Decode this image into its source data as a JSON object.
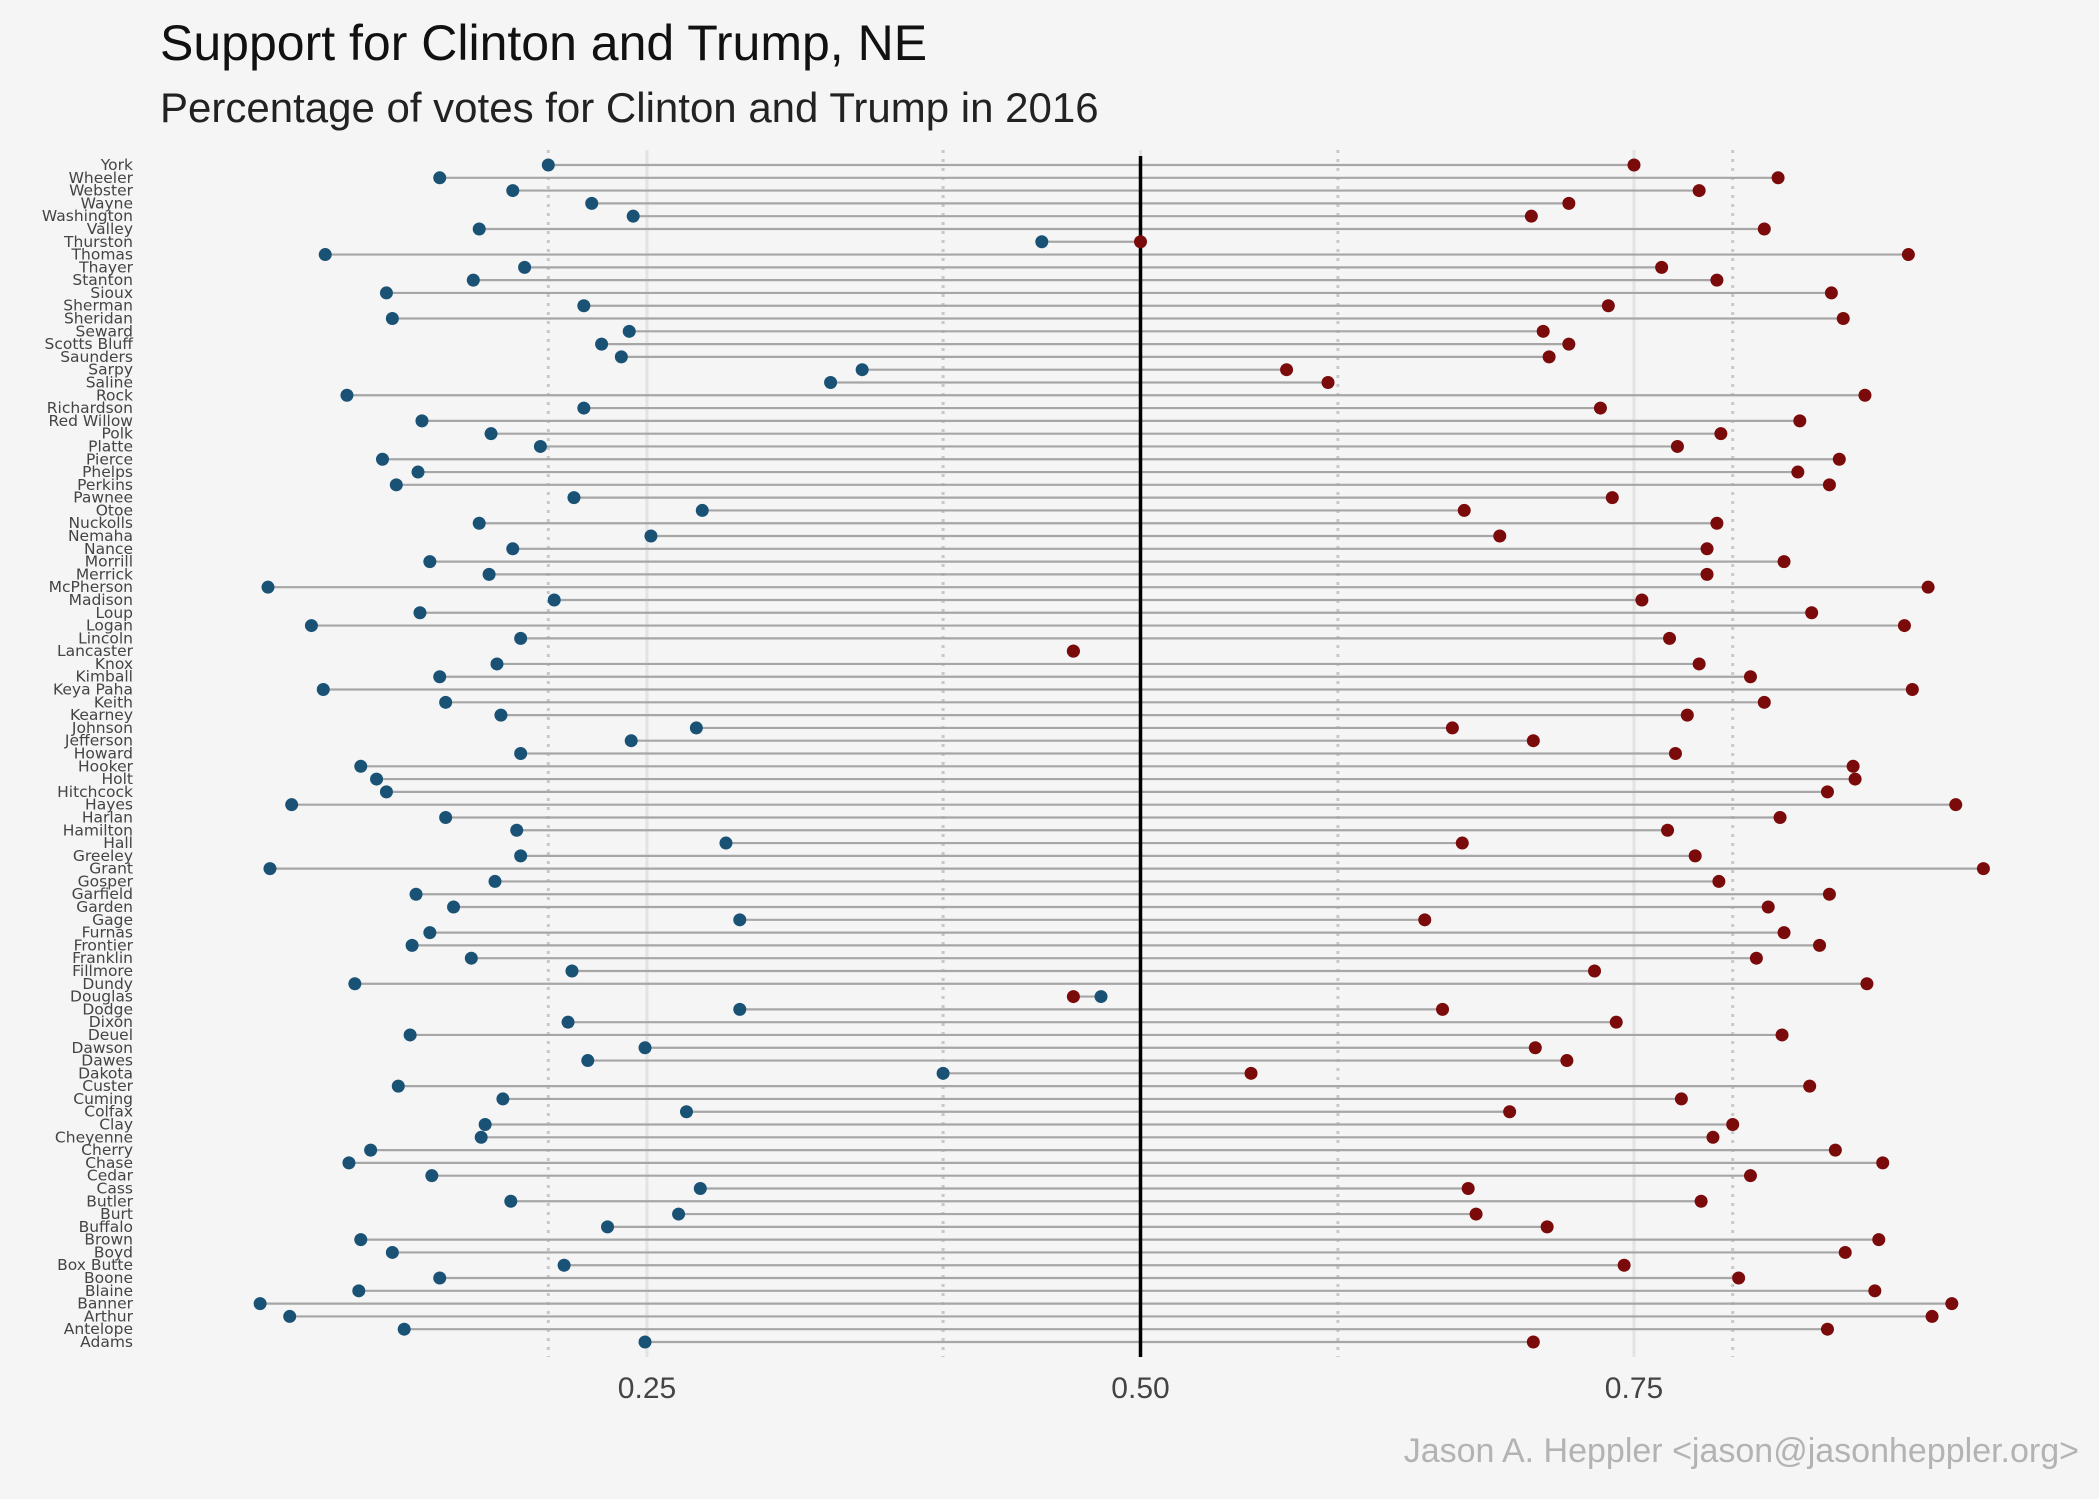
{
  "title": "Support for Clinton and Trump,  NE",
  "subtitle": "Percentage of votes for Clinton and Trump in 2016",
  "caption": "Jason A. Heppler <jason@jasonheppler.org>",
  "colors": {
    "clinton": "#1a5276",
    "trump": "#7b0a0a",
    "segment": "#a6a6a6",
    "midline": "#000000",
    "grid_major": "#e3e3e3",
    "grid_minor": "#c8c8c8"
  },
  "chart_data": {
    "type": "dumbbell",
    "x_ticks": [
      0.25,
      0.5,
      0.75
    ],
    "x_tick_labels": [
      "0.25",
      "0.50",
      "0.75"
    ],
    "xlim": [
      0.04,
      0.95
    ],
    "reference_line": 0.5,
    "grid": true,
    "series": [
      {
        "key": "clinton",
        "color": "#1a5276"
      },
      {
        "key": "trump",
        "color": "#7b0a0a"
      }
    ],
    "counties": [
      {
        "county": "York",
        "clinton": 0.2,
        "trump": 0.75
      },
      {
        "county": "Wheeler",
        "clinton": 0.145,
        "trump": 0.823
      },
      {
        "county": "Webster",
        "clinton": 0.182,
        "trump": 0.783
      },
      {
        "county": "Wayne",
        "clinton": 0.222,
        "trump": 0.717
      },
      {
        "county": "Washington",
        "clinton": 0.243,
        "trump": 0.698
      },
      {
        "county": "Valley",
        "clinton": 0.165,
        "trump": 0.816
      },
      {
        "county": "Thurston",
        "clinton": 0.45,
        "trump": 0.5
      },
      {
        "county": "Thomas",
        "clinton": 0.087,
        "trump": 0.889
      },
      {
        "county": "Thayer",
        "clinton": 0.188,
        "trump": 0.764
      },
      {
        "county": "Stanton",
        "clinton": 0.162,
        "trump": 0.792
      },
      {
        "county": "Sioux",
        "clinton": 0.118,
        "trump": 0.85
      },
      {
        "county": "Sherman",
        "clinton": 0.218,
        "trump": 0.737
      },
      {
        "county": "Sheridan",
        "clinton": 0.121,
        "trump": 0.856
      },
      {
        "county": "Seward",
        "clinton": 0.241,
        "trump": 0.704
      },
      {
        "county": "Scotts Bluff",
        "clinton": 0.227,
        "trump": 0.717
      },
      {
        "county": "Saunders",
        "clinton": 0.237,
        "trump": 0.707
      },
      {
        "county": "Sarpy",
        "clinton": 0.359,
        "trump": 0.574
      },
      {
        "county": "Saline",
        "clinton": 0.343,
        "trump": 0.595
      },
      {
        "county": "Rock",
        "clinton": 0.098,
        "trump": 0.867
      },
      {
        "county": "Richardson",
        "clinton": 0.218,
        "trump": 0.733
      },
      {
        "county": "Red Willow",
        "clinton": 0.136,
        "trump": 0.834
      },
      {
        "county": "Polk",
        "clinton": 0.171,
        "trump": 0.794
      },
      {
        "county": "Platte",
        "clinton": 0.196,
        "trump": 0.772
      },
      {
        "county": "Pierce",
        "clinton": 0.116,
        "trump": 0.854
      },
      {
        "county": "Phelps",
        "clinton": 0.134,
        "trump": 0.833
      },
      {
        "county": "Perkins",
        "clinton": 0.123,
        "trump": 0.849
      },
      {
        "county": "Pawnee",
        "clinton": 0.213,
        "trump": 0.739
      },
      {
        "county": "Otoe",
        "clinton": 0.278,
        "trump": 0.664
      },
      {
        "county": "Nuckolls",
        "clinton": 0.165,
        "trump": 0.792
      },
      {
        "county": "Nemaha",
        "clinton": 0.252,
        "trump": 0.682
      },
      {
        "county": "Nance",
        "clinton": 0.182,
        "trump": 0.787
      },
      {
        "county": "Morrill",
        "clinton": 0.14,
        "trump": 0.826
      },
      {
        "county": "Merrick",
        "clinton": 0.17,
        "trump": 0.787
      },
      {
        "county": "McPherson",
        "clinton": 0.058,
        "trump": 0.899
      },
      {
        "county": "Madison",
        "clinton": 0.203,
        "trump": 0.754
      },
      {
        "county": "Loup",
        "clinton": 0.135,
        "trump": 0.84
      },
      {
        "county": "Logan",
        "clinton": 0.08,
        "trump": 0.887
      },
      {
        "county": "Lincoln",
        "clinton": 0.186,
        "trump": 0.768
      },
      {
        "county": "Lancaster",
        "clinton": 0.466,
        "trump": 0.466
      },
      {
        "county": "Knox",
        "clinton": 0.174,
        "trump": 0.783
      },
      {
        "county": "Kimball",
        "clinton": 0.145,
        "trump": 0.809
      },
      {
        "county": "Keya Paha",
        "clinton": 0.086,
        "trump": 0.891
      },
      {
        "county": "Keith",
        "clinton": 0.148,
        "trump": 0.816
      },
      {
        "county": "Kearney",
        "clinton": 0.176,
        "trump": 0.777
      },
      {
        "county": "Johnson",
        "clinton": 0.275,
        "trump": 0.658
      },
      {
        "county": "Jefferson",
        "clinton": 0.242,
        "trump": 0.699
      },
      {
        "county": "Howard",
        "clinton": 0.186,
        "trump": 0.771
      },
      {
        "county": "Hooker",
        "clinton": 0.105,
        "trump": 0.861
      },
      {
        "county": "Holt",
        "clinton": 0.113,
        "trump": 0.862
      },
      {
        "county": "Hitchcock",
        "clinton": 0.118,
        "trump": 0.848
      },
      {
        "county": "Hayes",
        "clinton": 0.07,
        "trump": 0.913
      },
      {
        "county": "Harlan",
        "clinton": 0.148,
        "trump": 0.824
      },
      {
        "county": "Hamilton",
        "clinton": 0.184,
        "trump": 0.767
      },
      {
        "county": "Hall",
        "clinton": 0.29,
        "trump": 0.663
      },
      {
        "county": "Greeley",
        "clinton": 0.186,
        "trump": 0.781
      },
      {
        "county": "Grant",
        "clinton": 0.059,
        "trump": 0.927
      },
      {
        "county": "Gosper",
        "clinton": 0.173,
        "trump": 0.793
      },
      {
        "county": "Garfield",
        "clinton": 0.133,
        "trump": 0.849
      },
      {
        "county": "Garden",
        "clinton": 0.152,
        "trump": 0.818
      },
      {
        "county": "Gage",
        "clinton": 0.297,
        "trump": 0.644
      },
      {
        "county": "Furnas",
        "clinton": 0.14,
        "trump": 0.826
      },
      {
        "county": "Frontier",
        "clinton": 0.131,
        "trump": 0.844
      },
      {
        "county": "Franklin",
        "clinton": 0.161,
        "trump": 0.812
      },
      {
        "county": "Fillmore",
        "clinton": 0.212,
        "trump": 0.73
      },
      {
        "county": "Dundy",
        "clinton": 0.102,
        "trump": 0.868
      },
      {
        "county": "Douglas",
        "clinton": 0.48,
        "trump": 0.466
      },
      {
        "county": "Dodge",
        "clinton": 0.297,
        "trump": 0.653
      },
      {
        "county": "Dixon",
        "clinton": 0.21,
        "trump": 0.741
      },
      {
        "county": "Deuel",
        "clinton": 0.13,
        "trump": 0.825
      },
      {
        "county": "Dawson",
        "clinton": 0.249,
        "trump": 0.7
      },
      {
        "county": "Dawes",
        "clinton": 0.22,
        "trump": 0.716
      },
      {
        "county": "Dakota",
        "clinton": 0.4,
        "trump": 0.556
      },
      {
        "county": "Custer",
        "clinton": 0.124,
        "trump": 0.839
      },
      {
        "county": "Cuming",
        "clinton": 0.177,
        "trump": 0.774
      },
      {
        "county": "Colfax",
        "clinton": 0.27,
        "trump": 0.687
      },
      {
        "county": "Clay",
        "clinton": 0.168,
        "trump": 0.8
      },
      {
        "county": "Cheyenne",
        "clinton": 0.166,
        "trump": 0.79
      },
      {
        "county": "Cherry",
        "clinton": 0.11,
        "trump": 0.852
      },
      {
        "county": "Chase",
        "clinton": 0.099,
        "trump": 0.876
      },
      {
        "county": "Cedar",
        "clinton": 0.141,
        "trump": 0.809
      },
      {
        "county": "Cass",
        "clinton": 0.277,
        "trump": 0.666
      },
      {
        "county": "Butler",
        "clinton": 0.181,
        "trump": 0.784
      },
      {
        "county": "Burt",
        "clinton": 0.266,
        "trump": 0.67
      },
      {
        "county": "Buffalo",
        "clinton": 0.23,
        "trump": 0.706
      },
      {
        "county": "Brown",
        "clinton": 0.105,
        "trump": 0.874
      },
      {
        "county": "Boyd",
        "clinton": 0.121,
        "trump": 0.857
      },
      {
        "county": "Box Butte",
        "clinton": 0.208,
        "trump": 0.745
      },
      {
        "county": "Boone",
        "clinton": 0.145,
        "trump": 0.803
      },
      {
        "county": "Blaine",
        "clinton": 0.104,
        "trump": 0.872
      },
      {
        "county": "Banner",
        "clinton": 0.054,
        "trump": 0.911
      },
      {
        "county": "Arthur",
        "clinton": 0.069,
        "trump": 0.901
      },
      {
        "county": "Antelope",
        "clinton": 0.127,
        "trump": 0.848
      },
      {
        "county": "Adams",
        "clinton": 0.249,
        "trump": 0.699
      }
    ]
  }
}
